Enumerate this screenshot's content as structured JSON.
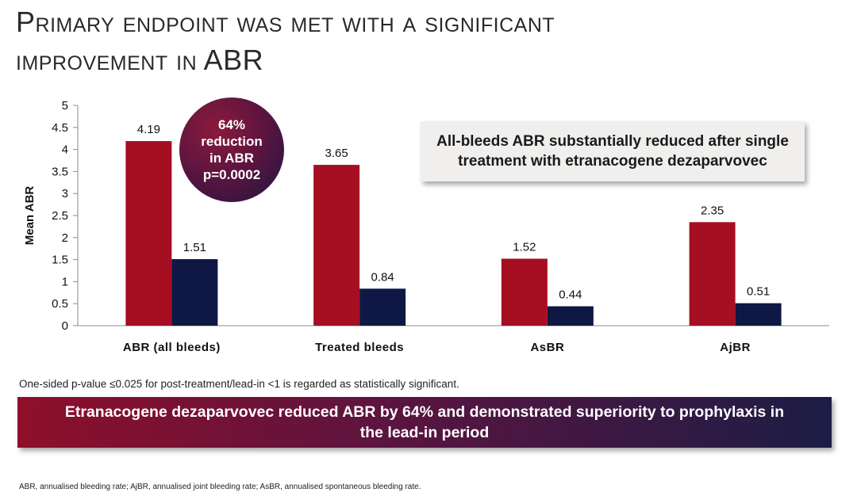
{
  "slide": {
    "title_line1": "Primary endpoint was met with a significant",
    "title_line2": "improvement in ABR"
  },
  "callout": {
    "line1": "All-bleeds ABR substantially reduced after single",
    "line2": "treatment with etranacogene dezaparvovec"
  },
  "reduction_badge": {
    "line1": "64%",
    "line2": "reduction",
    "line3": "in ABR",
    "line4": "p=0.0002"
  },
  "footnote_significance": "One-sided p-value ≤0.025 for post-treatment/lead-in <1 is regarded as statistically significant.",
  "conclusion": {
    "line1": "Etranacogene dezaparvovec reduced ABR by 64% and demonstrated superiority to prophylaxis in",
    "line2": "the lead-in period"
  },
  "abbreviations": "ABR, annualised bleeding rate; AjBR, annualised joint bleeding rate; AsBR, annualised spontaneous bleeding rate.",
  "chart_data": {
    "type": "bar",
    "ylabel": "Mean ABR",
    "xlabel": "",
    "ylim": [
      0,
      5
    ],
    "yticks": [
      0,
      0.5,
      1,
      1.5,
      2,
      2.5,
      3,
      3.5,
      4,
      4.5,
      5
    ],
    "ytick_labels": [
      "0",
      "0.5",
      "1",
      "1.5",
      "2",
      "2.5",
      "3",
      "3.5",
      "4",
      "4.5",
      "5"
    ],
    "categories": [
      "ABR (all bleeds)",
      "Treated bleeds",
      "AsBR",
      "AjBR"
    ],
    "series": [
      {
        "color": "#a50f21",
        "values": [
          4.19,
          3.65,
          1.52,
          2.35
        ],
        "labels": [
          "4.19",
          "3.65",
          "1.52",
          "2.35"
        ]
      },
      {
        "color": "#0f1744",
        "values": [
          1.51,
          0.84,
          0.44,
          0.51
        ],
        "labels": [
          "1.51",
          "0.84",
          "0.44",
          "0.51"
        ]
      }
    ],
    "grid": false,
    "legend": "none"
  }
}
